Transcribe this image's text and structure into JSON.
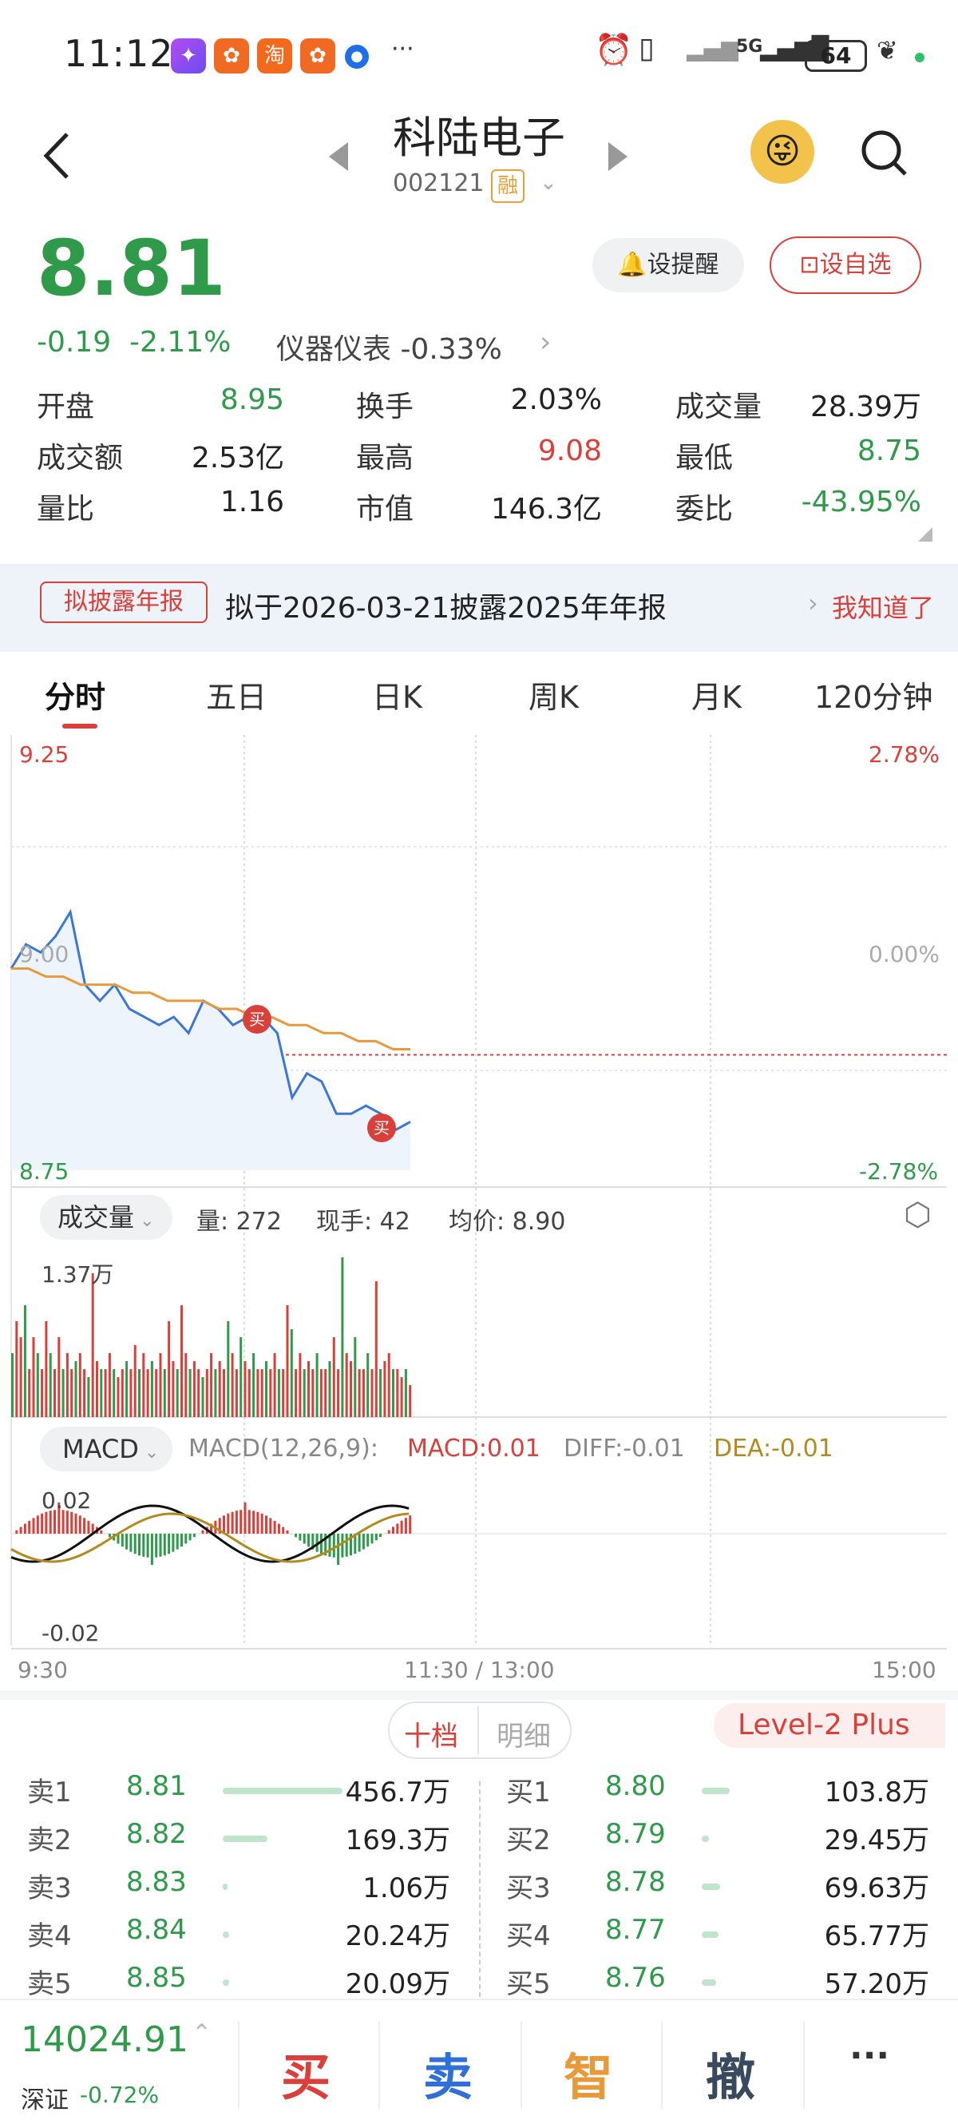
{
  "status_bar": {
    "time": "11:12",
    "network": "5G",
    "battery": "64",
    "app_icons": [
      "app-purple-icon",
      "app-orange-icon",
      "taobao-icon",
      "app-orange2-icon",
      "app-blue-icon"
    ],
    "more": "···"
  },
  "header": {
    "title": "科陆电子",
    "code": "002121",
    "margin_badge": "融"
  },
  "quote": {
    "price": "8.81",
    "change": "-0.19",
    "change_pct": "-2.11%",
    "sector": "仪器仪表 -0.33%",
    "reminder_btn": "设提醒",
    "watchlist_btn": "设自选",
    "stats": [
      {
        "label": "开盘",
        "value": "8.95",
        "color": "green"
      },
      {
        "label": "换手",
        "value": "2.03%",
        "color": "dark"
      },
      {
        "label": "成交量",
        "value": "28.39万",
        "color": "dark"
      },
      {
        "label": "成交额",
        "value": "2.53亿",
        "color": "dark"
      },
      {
        "label": "最高",
        "value": "9.08",
        "color": "red"
      },
      {
        "label": "最低",
        "value": "8.75",
        "color": "green"
      },
      {
        "label": "量比",
        "value": "1.16",
        "color": "dark"
      },
      {
        "label": "市值",
        "value": "146.3亿",
        "color": "dark"
      },
      {
        "label": "委比",
        "value": "-43.95%",
        "color": "green"
      }
    ]
  },
  "notice": {
    "tag": "拟披露年报",
    "text": "拟于2026-03-21披露2025年年报",
    "action": "我知道了"
  },
  "tabs": [
    "分时",
    "五日",
    "日K",
    "周K",
    "月K",
    "120分钟"
  ],
  "chart": {
    "y_max": "9.25",
    "y_min": "8.75",
    "pct_max": "2.78%",
    "pct_mid": "0.00%",
    "pct_min": "-2.78%",
    "ref_price_label": "9.00",
    "buy_marker": "买",
    "volume_selector": "成交量",
    "vol_info": "量: 272",
    "hand_info": "现手: 42",
    "avg_info": "均价: 8.90",
    "vol_max": "1.37万",
    "macd_selector": "MACD",
    "macd_params": "MACD(12,26,9):",
    "macd_val": "MACD:0.01",
    "diff_val": "DIFF:-0.01",
    "dea_val": "DEA:-0.01",
    "macd_max": "0.02",
    "macd_min": "-0.02",
    "time_start": "9:30",
    "time_mid": "11:30 / 13:00",
    "time_end": "15:00"
  },
  "chart_data": {
    "type": "line",
    "title": "",
    "x_range": [
      "9:30",
      "15:00"
    ],
    "ylim": [
      8.75,
      9.25
    ],
    "reference": 9.0,
    "series": [
      {
        "name": "",
        "values": [
          9.0,
          9.03,
          9.02,
          9.04,
          9.07,
          8.98,
          8.96,
          8.98,
          8.95,
          8.94,
          8.93,
          8.94,
          8.92,
          8.96,
          8.95,
          8.93,
          8.94,
          8.94,
          8.92,
          8.84,
          8.87,
          8.86,
          8.82,
          8.82,
          8.83,
          8.82,
          8.8,
          8.81
        ]
      },
      {
        "name": "",
        "values": [
          9.0,
          9.0,
          8.99,
          8.99,
          8.98,
          8.98,
          8.98,
          8.97,
          8.97,
          8.96,
          8.96,
          8.96,
          8.95,
          8.95,
          8.94,
          8.94,
          8.93,
          8.93,
          8.92,
          8.92,
          8.91,
          8.91,
          8.9,
          8.9
        ]
      }
    ]
  },
  "orderbook": {
    "tab_active": "十档",
    "tab_other": "明细",
    "level2": "Level-2 Plus",
    "sells": [
      {
        "label": "卖1",
        "price": "8.81",
        "vol": "456.7万",
        "bar": 1.0
      },
      {
        "label": "卖2",
        "price": "8.82",
        "vol": "169.3万",
        "bar": 0.37
      },
      {
        "label": "卖3",
        "price": "8.83",
        "vol": "1.06万",
        "bar": 0.01
      },
      {
        "label": "卖4",
        "price": "8.84",
        "vol": "20.24万",
        "bar": 0.05
      },
      {
        "label": "卖5",
        "price": "8.85",
        "vol": "20.09万",
        "bar": 0.05
      }
    ],
    "buys": [
      {
        "label": "买1",
        "price": "8.80",
        "vol": "103.8万",
        "bar": 0.23
      },
      {
        "label": "买2",
        "price": "8.79",
        "vol": "29.45万",
        "bar": 0.06
      },
      {
        "label": "买3",
        "price": "8.78",
        "vol": "69.63万",
        "bar": 0.15
      },
      {
        "label": "买4",
        "price": "8.77",
        "vol": "65.77万",
        "bar": 0.14
      },
      {
        "label": "买5",
        "price": "8.76",
        "vol": "57.20万",
        "bar": 0.12
      }
    ]
  },
  "bottom": {
    "index_value": "14024.91",
    "index_name": "深证",
    "index_change": "-0.72%",
    "buy": "买",
    "sell": "卖",
    "smart": "智",
    "cancel": "撤",
    "more": "···"
  }
}
